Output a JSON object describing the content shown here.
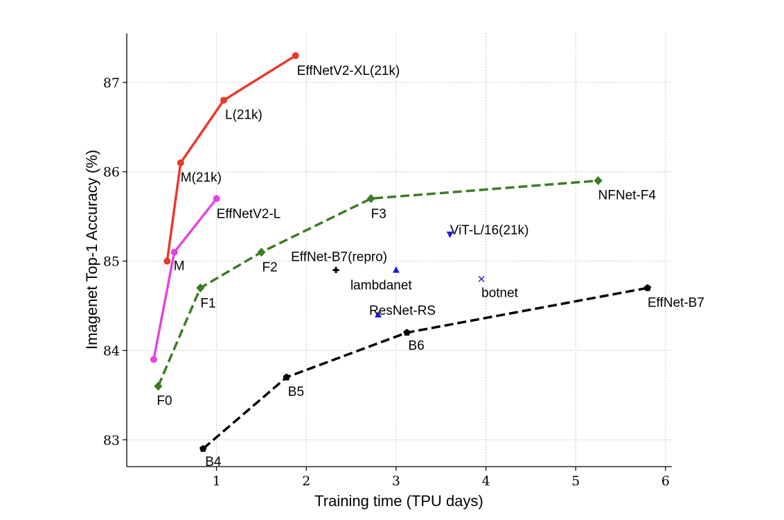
{
  "chart_data": {
    "type": "line",
    "xlabel": "Training time (TPU days)",
    "ylabel": "Imagenet Top-1 Accuracy (%)",
    "xlim": [
      0.0,
      6.07
    ],
    "ylim": [
      82.7,
      87.55
    ],
    "xticks": [
      1,
      2,
      3,
      4,
      5,
      6
    ],
    "yticks": [
      83,
      84,
      85,
      86,
      87
    ],
    "grid": true,
    "series": [
      {
        "name": "EffNetV2-XL(21k)",
        "color": "#e8392b",
        "style": "solid",
        "marker": "circle",
        "points": [
          {
            "x": 0.45,
            "y": 85.0,
            "label": ""
          },
          {
            "x": 0.6,
            "y": 86.1,
            "label": "M(21k)"
          },
          {
            "x": 1.08,
            "y": 86.8,
            "label": "L(21k)"
          },
          {
            "x": 1.88,
            "y": 87.3,
            "label": "EffNetV2-XL(21k)"
          }
        ]
      },
      {
        "name": "EffNetV2-L",
        "color": "#e443e4",
        "style": "solid",
        "marker": "circle",
        "points": [
          {
            "x": 0.3,
            "y": 83.9,
            "label": ""
          },
          {
            "x": 0.53,
            "y": 85.1,
            "label": "M"
          },
          {
            "x": 1.0,
            "y": 85.7,
            "label": "EffNetV2-L"
          }
        ]
      },
      {
        "name": "NFNet-F4",
        "color": "#3a7d23",
        "style": "dashed",
        "marker": "diamond",
        "points": [
          {
            "x": 0.35,
            "y": 83.6,
            "label": "F0"
          },
          {
            "x": 0.82,
            "y": 84.7,
            "label": "F1"
          },
          {
            "x": 1.5,
            "y": 85.1,
            "label": "F2"
          },
          {
            "x": 2.72,
            "y": 85.7,
            "label": "F3"
          },
          {
            "x": 5.25,
            "y": 85.9,
            "label": "NFNet-F4"
          }
        ]
      },
      {
        "name": "EffNet-B7",
        "color": "#000000",
        "style": "dashed",
        "marker": "pentagon",
        "points": [
          {
            "x": 0.85,
            "y": 82.9,
            "label": "B4"
          },
          {
            "x": 1.78,
            "y": 83.7,
            "label": "B5"
          },
          {
            "x": 3.12,
            "y": 84.2,
            "label": "B6"
          },
          {
            "x": 5.8,
            "y": 84.7,
            "label": "EffNet-B7"
          }
        ]
      }
    ],
    "points": [
      {
        "label": "EffNet-B7(repro)",
        "x": 2.33,
        "y": 84.9,
        "marker": "plus",
        "color": "#000000"
      },
      {
        "label": "lambdanet",
        "x": 3.0,
        "y": 84.9,
        "marker": "triangle-up",
        "color": "#1f1fd6"
      },
      {
        "label": "ResNet-RS",
        "x": 2.8,
        "y": 84.4,
        "marker": "triangle-up",
        "color": "#1f1fd6"
      },
      {
        "label": "ViT-L/16(21k)",
        "x": 3.6,
        "y": 85.3,
        "marker": "triangle-down",
        "color": "#1f1fd6"
      },
      {
        "label": "botnet",
        "x": 3.95,
        "y": 84.8,
        "marker": "x",
        "color": "#1f1fd6"
      }
    ]
  }
}
